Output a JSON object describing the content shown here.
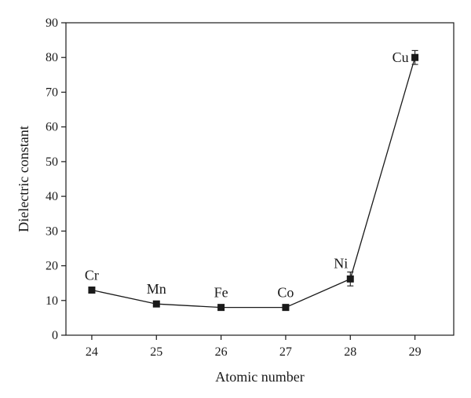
{
  "chart_data": {
    "type": "scatter",
    "xlabel": "Atomic number",
    "ylabel": "Dielectric constant",
    "xlim": [
      23.6,
      29.6
    ],
    "ylim": [
      0,
      90
    ],
    "x_ticks": [
      24,
      25,
      26,
      27,
      28,
      29
    ],
    "y_ticks": [
      0,
      10,
      20,
      30,
      40,
      50,
      60,
      70,
      80,
      90
    ],
    "grid": false,
    "legend": "none",
    "series": [
      {
        "x": [
          24,
          25,
          26,
          27,
          28,
          29
        ],
        "y": [
          13,
          9,
          8,
          8,
          16.2,
          80
        ],
        "error": [
          0.5,
          0.5,
          0.5,
          0.5,
          2,
          2
        ],
        "labels": [
          "Cr",
          "Mn",
          "Fe",
          "Co",
          "Ni",
          "Cu"
        ],
        "marker": "square",
        "line": "solid",
        "color": "#1a1a1a"
      }
    ]
  }
}
